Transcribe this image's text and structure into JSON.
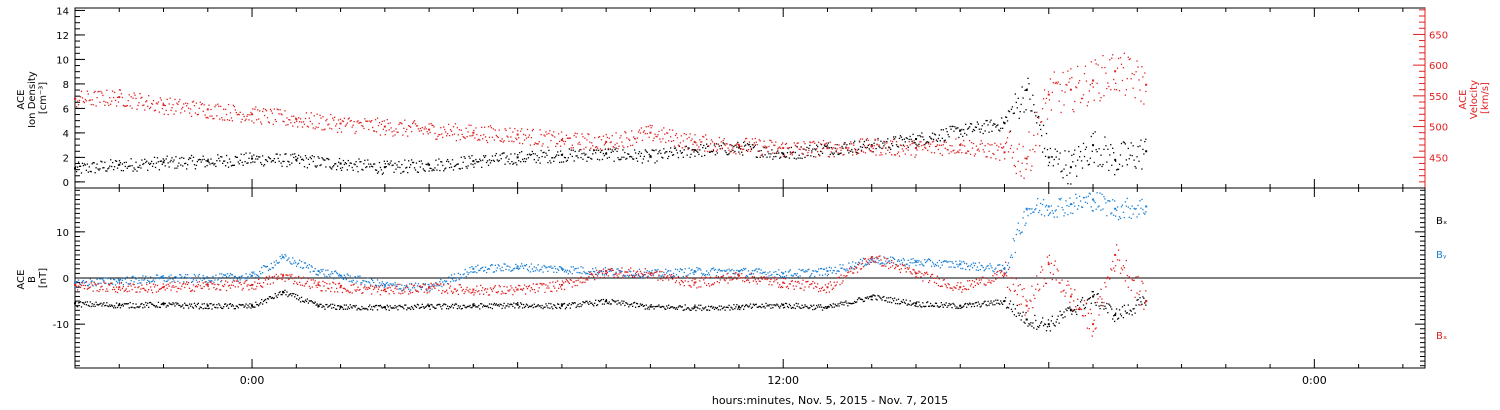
{
  "figure": {
    "xlabel": "hours:minutes, Nov.  5, 2015 - Nov.  7, 2015",
    "x_tick_labels": [
      "0:00",
      "12:00",
      "0:00"
    ]
  },
  "colors": {
    "black": "#000000",
    "red": "#e02020",
    "blue": "#1a7fd4"
  },
  "chart_data": [
    {
      "type": "scatter",
      "panel": "top",
      "ylabel_lines": [
        "ACE",
        "Ion Density",
        "[cm⁻³]"
      ],
      "y2label_lines": [
        "ACE",
        "Velocity",
        "[km/s]"
      ],
      "x_range_hours": [
        -4,
        26.5
      ],
      "data_end_hours": 20.2,
      "ylim": [
        -0.5,
        14.2
      ],
      "y_ticks": [
        0,
        2,
        4,
        6,
        8,
        10,
        12,
        14
      ],
      "y2lim": [
        400,
        693
      ],
      "y2_ticks": [
        450,
        500,
        550,
        600,
        650
      ],
      "series": [
        {
          "color": "black",
          "axis": "left",
          "x_hours": [
            -4,
            -3,
            -2,
            -1,
            0,
            1,
            2,
            3,
            4,
            5,
            6,
            7,
            8,
            9,
            10,
            11,
            12,
            13,
            14,
            15,
            16,
            17,
            17.5,
            18,
            18.5,
            19,
            19.5,
            20.2
          ],
          "values": [
            1.1,
            1.4,
            1.6,
            1.7,
            1.9,
            1.8,
            1.5,
            1.2,
            1.4,
            1.7,
            2.0,
            2.2,
            2.3,
            2.1,
            2.6,
            2.8,
            2.3,
            2.8,
            3.0,
            3.5,
            4.2,
            4.8,
            7.5,
            2.0,
            1.2,
            3.0,
            1.8,
            2.5
          ]
        },
        {
          "color": "red",
          "axis": "right",
          "x_hours": [
            -4,
            -3,
            -2,
            -1,
            0,
            1,
            2,
            3,
            4,
            5,
            6,
            7,
            8,
            9,
            10,
            11,
            12,
            13,
            14,
            15,
            16,
            17,
            17.5,
            18,
            18.5,
            19,
            19.5,
            20.2
          ],
          "values": [
            545,
            548,
            535,
            528,
            520,
            512,
            505,
            500,
            495,
            490,
            487,
            478,
            475,
            490,
            475,
            470,
            465,
            465,
            468,
            465,
            470,
            458,
            448,
            552,
            560,
            575,
            590,
            568
          ]
        }
      ]
    },
    {
      "type": "scatter",
      "panel": "bottom",
      "ylabel_lines": [
        "ACE",
        "B",
        "[nT]"
      ],
      "x_range_hours": [
        -4,
        26.5
      ],
      "data_end_hours": 20.2,
      "ylim": [
        -19.5,
        19.5
      ],
      "y_ticks": [
        -10,
        0,
        10
      ],
      "zero_line": true,
      "legend_position": "right",
      "series": [
        {
          "name": "Bₓ",
          "color": "black",
          "x_hours": [
            -4,
            -3,
            -2,
            -1,
            0,
            0.7,
            1.5,
            2,
            3,
            4,
            5,
            6,
            7,
            8,
            9,
            10,
            11,
            12,
            13,
            14,
            15,
            16,
            17,
            17.5,
            18,
            18.5,
            19,
            19.5,
            20.2
          ],
          "values": [
            -5.5,
            -5.8,
            -5.7,
            -6.0,
            -6.0,
            -3.0,
            -6.0,
            -6.2,
            -6.3,
            -6.1,
            -6.0,
            -5.8,
            -6.0,
            -5.0,
            -6.2,
            -6.3,
            -6.2,
            -5.8,
            -6.3,
            -4.0,
            -5.5,
            -6.0,
            -5.0,
            -9.0,
            -10.0,
            -7.0,
            -4.0,
            -8.0,
            -5.0
          ]
        },
        {
          "name": "Bᵧ",
          "color": "blue",
          "x_hours": [
            -4,
            -3,
            -2,
            -1,
            0,
            0.7,
            1.5,
            2,
            3,
            4,
            5,
            6,
            7,
            8,
            9,
            10,
            11,
            12,
            13,
            14,
            15,
            16,
            17,
            17.5,
            18,
            18.5,
            19,
            19.5,
            20.2
          ],
          "values": [
            -1.0,
            -0.5,
            0.0,
            0.0,
            0.5,
            4.5,
            1.5,
            0.5,
            -1.5,
            -2.0,
            2.0,
            2.5,
            2.0,
            1.5,
            1.0,
            1.5,
            1.5,
            1.0,
            1.5,
            4.0,
            3.5,
            3.0,
            2.0,
            15.0,
            15.5,
            16.0,
            17.0,
            15.0,
            15.5
          ]
        },
        {
          "name": "Bₓ",
          "color": "red",
          "x_hours": [
            -4,
            -3,
            -2,
            -1,
            0,
            0.7,
            1.5,
            2,
            3,
            4,
            5,
            6,
            7,
            8,
            9,
            10,
            11,
            12,
            13,
            14,
            15,
            16,
            17,
            17.5,
            18,
            18.5,
            19,
            19.5,
            20.2
          ],
          "values": [
            -1.5,
            -2.0,
            -2.0,
            -1.5,
            -1.5,
            0.5,
            -1.5,
            -2.0,
            -2.5,
            -2.0,
            -2.5,
            -2.5,
            -1.5,
            1.5,
            1.0,
            -1.0,
            0.5,
            -1.0,
            -2.0,
            4.5,
            1.0,
            -2.0,
            1.0,
            -6.0,
            3.0,
            -4.0,
            -10.0,
            5.0,
            -5.0
          ]
        }
      ]
    }
  ]
}
